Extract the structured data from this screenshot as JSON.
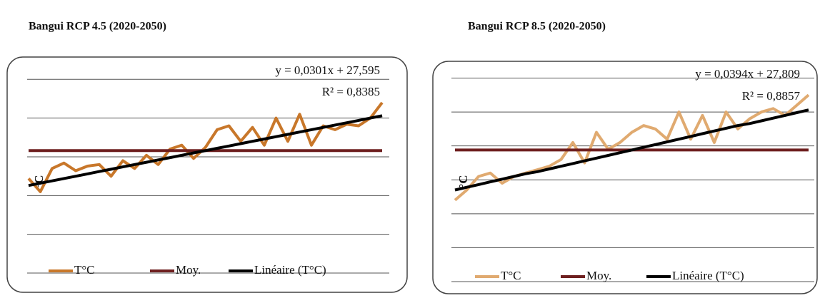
{
  "chart_data": [
    {
      "type": "line",
      "title": "Bangui RCP 4.5 (2020-2050)",
      "y_label": "°C",
      "annotations": [
        "y = 0,0301x + 27,595",
        "R² = 0,8385"
      ],
      "categories": [
        null,
        null,
        null,
        null,
        null,
        null,
        null,
        null,
        null,
        null,
        null,
        null,
        null,
        null,
        null,
        null,
        null,
        null,
        null,
        null,
        null,
        null,
        null,
        null,
        null,
        null,
        null,
        null,
        null,
        null,
        null
      ],
      "ylim": [
        26.5,
        29.15
      ],
      "yticks": [
        26.5,
        27,
        27.5,
        28,
        28.5,
        29
      ],
      "grid": true,
      "legend": "bottom",
      "series": [
        {
          "name": "T°C",
          "color": "#c8772a",
          "values": [
            27.72,
            27.55,
            27.85,
            27.92,
            27.82,
            27.88,
            27.9,
            27.75,
            27.95,
            27.85,
            28.02,
            27.9,
            28.1,
            28.15,
            27.98,
            28.12,
            28.35,
            28.4,
            28.2,
            28.38,
            28.15,
            28.5,
            28.2,
            28.55,
            28.15,
            28.4,
            28.35,
            28.42,
            28.4,
            28.5,
            28.7
          ]
        },
        {
          "name": "Moy.",
          "color": "#6e1f1f",
          "values": [
            28.08,
            28.08,
            28.08,
            28.08,
            28.08,
            28.08,
            28.08,
            28.08,
            28.08,
            28.08,
            28.08,
            28.08,
            28.08,
            28.08,
            28.08,
            28.08,
            28.08,
            28.08,
            28.08,
            28.08,
            28.08,
            28.08,
            28.08,
            28.08,
            28.08,
            28.08,
            28.08,
            28.08,
            28.08,
            28.08,
            28.08
          ]
        },
        {
          "name": "Linéaire (T°C)",
          "color": "#000000",
          "values": [
            27.63,
            27.66,
            27.69,
            27.72,
            27.75,
            27.78,
            27.81,
            27.84,
            27.87,
            27.9,
            27.93,
            27.96,
            27.99,
            28.02,
            28.05,
            28.08,
            28.11,
            28.14,
            28.17,
            28.2,
            28.23,
            28.26,
            28.29,
            28.32,
            28.35,
            28.38,
            28.41,
            28.44,
            28.47,
            28.5,
            28.53
          ]
        }
      ]
    },
    {
      "type": "line",
      "title": "Bangui RCP 8.5 (2020-2050)",
      "y_label": "°C",
      "annotations": [
        "y = 0,0394x + 27,809",
        "R² = 0,8857"
      ],
      "categories": [
        null,
        null,
        null,
        null,
        null,
        null,
        null,
        null,
        null,
        null,
        null,
        null,
        null,
        null,
        null,
        null,
        null,
        null,
        null,
        null,
        null,
        null,
        null,
        null,
        null,
        null,
        null,
        null,
        null,
        null,
        null
      ],
      "ylim": [
        26.5,
        29.6
      ],
      "yticks": [
        26.5,
        27,
        27.5,
        28,
        28.5,
        29,
        29.5
      ],
      "grid": true,
      "legend": "bottom",
      "series": [
        {
          "name": "T°C",
          "color": "#e0aa70",
          "values": [
            27.7,
            27.85,
            28.05,
            28.1,
            27.95,
            28.05,
            28.1,
            28.15,
            28.2,
            28.3,
            28.55,
            28.25,
            28.7,
            28.45,
            28.55,
            28.7,
            28.8,
            28.75,
            28.6,
            29.0,
            28.6,
            28.95,
            28.55,
            29.0,
            28.75,
            28.9,
            29.0,
            29.05,
            28.95,
            29.1,
            29.25
          ]
        },
        {
          "name": "Moy.",
          "color": "#6e1f1f",
          "values": [
            28.44,
            28.44,
            28.44,
            28.44,
            28.44,
            28.44,
            28.44,
            28.44,
            28.44,
            28.44,
            28.44,
            28.44,
            28.44,
            28.44,
            28.44,
            28.44,
            28.44,
            28.44,
            28.44,
            28.44,
            28.44,
            28.44,
            28.44,
            28.44,
            28.44,
            28.44,
            28.44,
            28.44,
            28.44,
            28.44,
            28.44
          ]
        },
        {
          "name": "Linéaire (T°C)",
          "color": "#000000",
          "values": [
            27.85,
            27.89,
            27.93,
            27.97,
            28.01,
            28.05,
            28.09,
            28.12,
            28.16,
            28.2,
            28.24,
            28.28,
            28.32,
            28.36,
            28.4,
            28.44,
            28.48,
            28.52,
            28.56,
            28.6,
            28.64,
            28.68,
            28.72,
            28.76,
            28.8,
            28.83,
            28.87,
            28.91,
            28.95,
            28.99,
            29.03
          ]
        }
      ]
    }
  ]
}
